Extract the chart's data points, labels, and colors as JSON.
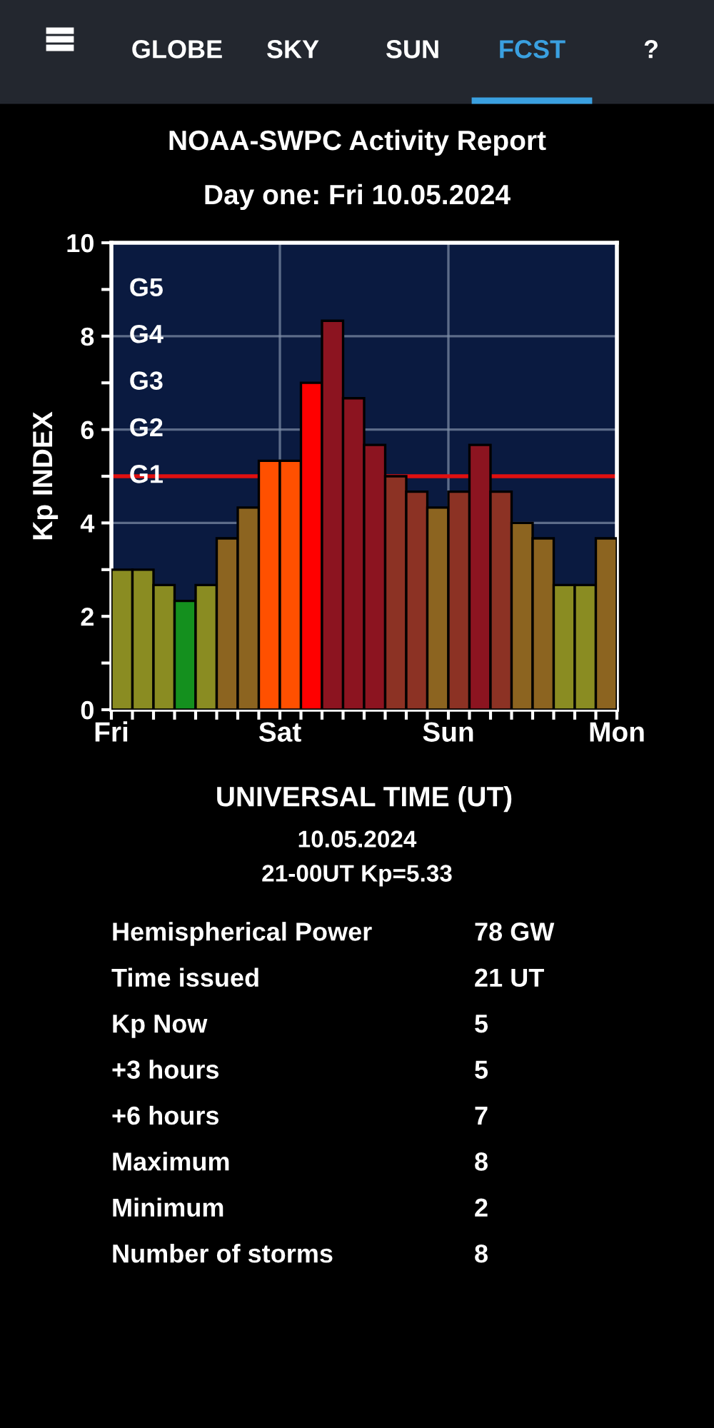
{
  "chart_data": {
    "type": "bar",
    "title": "NOAA-SWPC Activity Report",
    "subtitle": "Day one: Fri 10.05.2024",
    "xlabel": "UNIVERSAL TIME (UT)",
    "ylabel": "Kp INDEX",
    "categories": [
      null,
      null,
      null,
      null,
      null,
      null,
      null,
      null,
      null,
      null,
      null,
      null,
      null,
      null,
      null,
      null,
      null,
      null,
      null,
      null,
      null,
      null,
      null,
      null
    ],
    "values": [
      3,
      3,
      2.67,
      2.33,
      2.67,
      3.67,
      4.33,
      5.33,
      5.33,
      7,
      8.33,
      6.67,
      5.67,
      5,
      4.67,
      4.33,
      4.67,
      5.67,
      4.67,
      4,
      3.67,
      2.67,
      2.67,
      3.67
    ],
    "colors": [
      "#8a8c22",
      "#8a8c22",
      "#8a8c22",
      "#14901e",
      "#8a8c22",
      "#8c6420",
      "#8c6420",
      "#ff5000",
      "#ff5000",
      "#ff0000",
      "#8c1420",
      "#8c1420",
      "#8c1420",
      "#8c3224",
      "#8c3224",
      "#8c6420",
      "#8c3224",
      "#8c1420",
      "#8c3224",
      "#8c6420",
      "#8c6420",
      "#8a8c22",
      "#8a8c22",
      "#8c6420"
    ],
    "ylim": [
      0,
      10
    ],
    "yticks": [
      0,
      {
        "value": 1,
        "label": null
      },
      2,
      {
        "value": 3,
        "label": null
      },
      4,
      {
        "value": 5,
        "label": null
      },
      6,
      {
        "value": 7,
        "label": null
      },
      8,
      {
        "value": 9,
        "label": null
      },
      10
    ],
    "grid": true,
    "ref_lines": [
      {
        "axis": "y",
        "value": 5,
        "color": "#e01010"
      }
    ],
    "annotations": [
      "G1",
      "G2",
      "G3",
      "G4",
      "G5",
      "Fri",
      "Sat",
      "Sun",
      "Mon",
      "GLOBE",
      "SKY",
      "SUN",
      "FCST",
      "?",
      "10.05.2024",
      "21-00UT Kp=5.33",
      "Hemispherical Power",
      "78 GW",
      "Time issued",
      "21 UT",
      "Kp Now",
      "5",
      "+3 hours",
      "5",
      "+6 hours",
      "7",
      "Maximum",
      "8",
      "Minimum",
      "2",
      "Number of storms",
      "8"
    ]
  }
}
